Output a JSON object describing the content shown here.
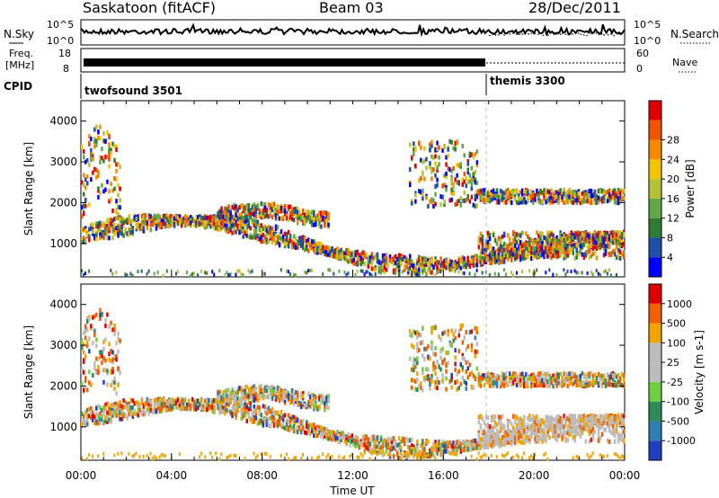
{
  "header": {
    "station": "Saskatoon (fitACF)",
    "beam": "Beam 03",
    "date": "28/Dec/2011"
  },
  "colors": {
    "power_scale": [
      "#0000ff",
      "#1f4fa8",
      "#2e7d32",
      "#5fa845",
      "#b5c235",
      "#f2c400",
      "#f58a00",
      "#ef5500",
      "#e10000"
    ],
    "velocity_scale": [
      "#1f3fbf",
      "#2f7fb0",
      "#2e8b57",
      "#6fcf3f",
      "#bcbcbc",
      "#bcbcbc",
      "#f2a500",
      "#f06000",
      "#e00000"
    ]
  },
  "chart_data": [
    {
      "type": "line",
      "name": "nsky-nsearch",
      "left_label": "N.Sky",
      "right_label": "N.Search",
      "left_ticks": [
        "10^5",
        "10^0"
      ],
      "right_ticks": [
        "10^5",
        "10^0"
      ],
      "xlim": [
        0,
        24
      ]
    },
    {
      "type": "line",
      "name": "freq-nave",
      "left_label_lines": [
        "Freq.",
        "[MHz]"
      ],
      "right_label": "Nave",
      "left_ticks": [
        "18",
        "8"
      ],
      "right_ticks": [
        "60",
        "0"
      ],
      "xlim": [
        0,
        24
      ]
    },
    {
      "type": "table",
      "name": "cpid",
      "label": "CPID",
      "segments": [
        {
          "start": 0,
          "end": 18,
          "text": "twofsound 3501"
        },
        {
          "start": 18,
          "end": 24,
          "text": "themis 3300"
        }
      ]
    },
    {
      "type": "heatmap",
      "name": "power",
      "ylabel": "Slant Range [km]",
      "ylim": [
        180,
        4500
      ],
      "yticks": [
        1000,
        2000,
        3000,
        4000
      ],
      "xlim": [
        0,
        24
      ],
      "colorbar_title": "Power [dB]",
      "colorbar_ticks": [
        "4",
        "8",
        "12",
        "16",
        "20",
        "24",
        "28"
      ]
    },
    {
      "type": "heatmap",
      "name": "velocity",
      "ylabel": "Slant Range [km]",
      "ylim": [
        180,
        4500
      ],
      "yticks": [
        1000,
        2000,
        3000,
        4000
      ],
      "xlim": [
        0,
        24
      ],
      "xlabel": "Time UT",
      "xticks": [
        "00:00",
        "04:00",
        "08:00",
        "12:00",
        "16:00",
        "20:00",
        "00:00"
      ],
      "colorbar_title": "Velocity [m s-1]",
      "colorbar_ticks": [
        "1000",
        "500",
        "100",
        "25",
        "-25",
        "-100",
        "-500",
        "-1000"
      ]
    }
  ]
}
